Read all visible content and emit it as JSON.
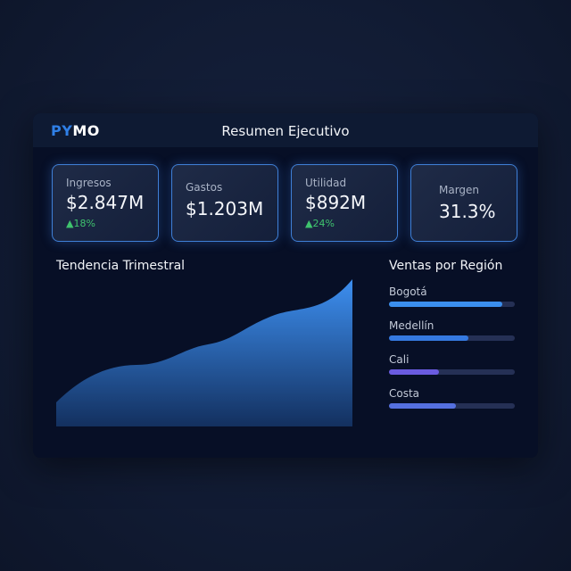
{
  "header": {
    "logo_a": "PY",
    "logo_b": "MO",
    "title": "Resumen Ejecutivo"
  },
  "kpis": [
    {
      "label": "Ingresos",
      "value": "$2.847M",
      "change": "▲18%"
    },
    {
      "label": "Gastos",
      "value": "$1.203M"
    },
    {
      "label": "Utilidad",
      "value": "$892M",
      "change": "▲24%"
    },
    {
      "label": "Margen",
      "value": "31.3%"
    }
  ],
  "trend": {
    "title": "Tendencia Trimestral",
    "colors": {
      "top": "#3d8ff0",
      "bottom": "#13305f"
    }
  },
  "regions": {
    "title": "Ventas por Región",
    "items": [
      {
        "name": "Bogotá",
        "percent": 90,
        "color": "#3b8fee"
      },
      {
        "name": "Medellín",
        "percent": 63,
        "color": "#3579e0"
      },
      {
        "name": "Cali",
        "percent": 40,
        "color": "#6a5be0"
      },
      {
        "name": "Costa",
        "percent": 53,
        "color": "#5570df"
      }
    ]
  }
}
